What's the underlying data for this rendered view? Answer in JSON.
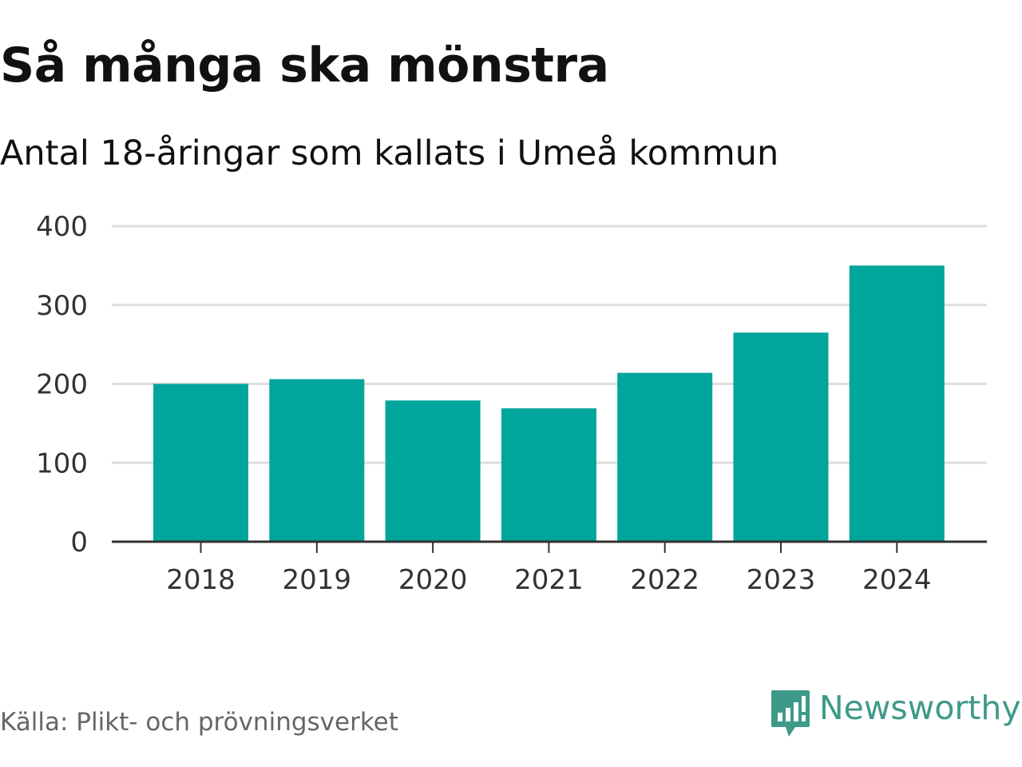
{
  "title": "Så många ska mönstra",
  "subtitle": "Antal 18-åringar som kallats i Umeå kommun",
  "source": "Källa: Plikt- och prövningsverket",
  "brand": {
    "name": "Newsworthy",
    "icon": "newsworthy-logo-icon",
    "color": "#3e9a88"
  },
  "colors": {
    "bar": "#00a59b",
    "grid": "#dddddd",
    "axis": "#333333",
    "tick_text": "#333333"
  },
  "chart_data": {
    "type": "bar",
    "title": "Så många ska mönstra",
    "subtitle": "Antal 18-åringar som kallats i Umeå kommun",
    "xlabel": "",
    "ylabel": "",
    "categories": [
      "2018",
      "2019",
      "2020",
      "2021",
      "2022",
      "2023",
      "2024"
    ],
    "values": [
      200,
      206,
      179,
      169,
      214,
      265,
      350
    ],
    "ylim": [
      0,
      400
    ],
    "yticks": [
      0,
      100,
      200,
      300,
      400
    ],
    "ytick_labels": [
      "0",
      "100",
      "200",
      "300",
      "400"
    ],
    "grid": true,
    "legend": "none"
  }
}
